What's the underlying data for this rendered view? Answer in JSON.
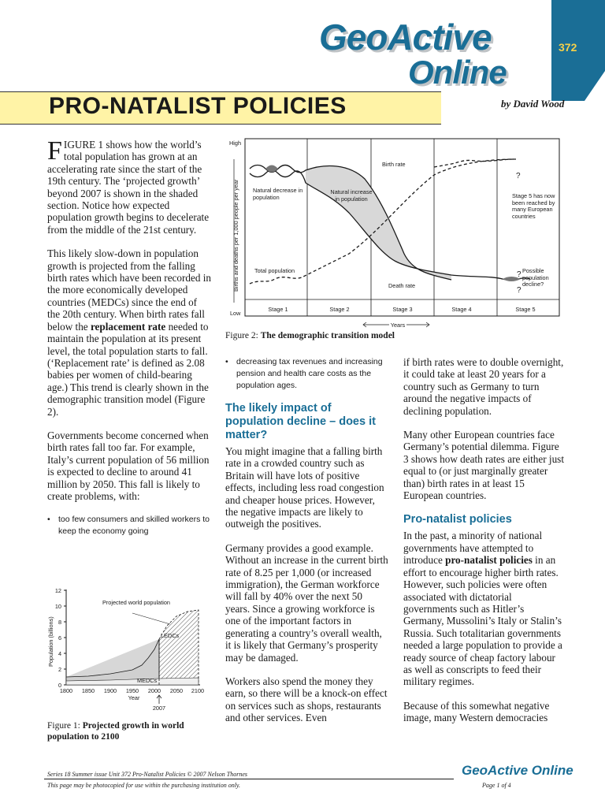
{
  "masthead": {
    "logo_line1": "GeoActive",
    "logo_line2": "Online",
    "issue_number": "372",
    "colors": {
      "brand_blue": "#1a6e96",
      "title_band": "#fff3a6",
      "issue_gold": "#f4d04a"
    }
  },
  "article": {
    "title": "PRO-NATALIST POLICIES",
    "byline": "by David Wood",
    "col1": {
      "dropcap": "F",
      "p1_rest": "IGURE 1 shows how the world’s total population has grown at an accelerating rate since the start of the 19th century. The ‘projected growth’ beyond 2007 is shown in the shaded section. Notice how expected population growth begins to decelerate from the middle of the 21st century.",
      "p2_before": "This likely slow-down in population growth is projected from the falling birth rates which have been recorded in the more economically developed countries (MEDCs) since the end of the 20th century. When birth rates fall below the",
      "p2_bold": "replacement rate",
      "p2_after": "needed to maintain the population at its present level, the total population starts to fall. (‘Replacement rate’ is defined as 2.08 babies per women of child-bearing age.) This trend is clearly shown in the demographic transition model (Figure 2).",
      "p3": "Governments become concerned when birth rates fall too far. For example, Italy’s current population of 56 million is expected to decline to around 41 million by 2050. This fall is likely to create problems, with:",
      "bullet1": "too few consumers and skilled workers to keep the economy going"
    },
    "col2": {
      "bullet2": "decreasing tax revenues and increasing pension and health care costs as the population ages.",
      "subhead1": "The likely impact of population decline – does it matter?",
      "p1": "You might imagine that a falling birth rate in a crowded country such as Britain will have lots of positive effects, including less road congestion and cheaper house prices. However, the negative impacts are likely to outweigh the positives.",
      "p2": "Germany provides a good example. Without an increase in the current birth rate of 8.25 per 1,000 (or increased immigration), the German workforce will fall by 40% over the next 50 years. Since a growing workforce is one of the important factors in generating a country’s overall wealth, it is likely that Germany’s prosperity may be damaged.",
      "p3": "Workers also spend the money they earn, so there will be a knock-on effect on services such as shops, restaurants and other services. Even"
    },
    "col3": {
      "p1": "if birth rates were to double overnight, it could take at least 20 years for a country such as Germany to turn around the negative impacts of declining population.",
      "p2": "Many other European countries face Germany’s potential dilemma. Figure 3 shows how death rates are either just equal to (or just marginally greater than) birth rates in at least 15 European countries.",
      "subhead2": "Pro-natalist policies",
      "p3_before": "In the past, a minority of national governments have attempted to introduce",
      "p3_bold": "pro-natalist policies",
      "p3_after": "in an effort to encourage higher birth rates. However, such policies were often associated with dictatorial governments such as Hitler’s Germany, Mussolini’s Italy or Stalin’s Russia. Such totalitarian governments needed a large population to provide a ready source of cheap factory labour as well as conscripts to feed their military regimes.",
      "p4": "Because of this somewhat negative image, many Western democracies"
    }
  },
  "figure1": {
    "caption_prefix": "Figure 1:",
    "caption_bold": "Projected growth in world population to 2100",
    "y_axis_label": "Population (billions)",
    "x_axis_label": "Year",
    "marker_label": "2007",
    "annotation_projected": "Projected world population",
    "label_ledcs": "LEDCs",
    "label_medcs": "MEDCs",
    "y_ticks": [
      "0",
      "2",
      "4",
      "6",
      "8",
      "10",
      "12"
    ],
    "x_ticks": [
      "1800",
      "1850",
      "1900",
      "1950",
      "2000",
      "2050",
      "2100"
    ]
  },
  "figure2": {
    "caption_prefix": "Figure 2:",
    "caption_bold": "The demographic transition model",
    "y_axis_label": "Births and deaths per 1,000 people per year",
    "y_high": "High",
    "y_low": "Low",
    "x_axis_label": "Years",
    "stages": [
      "Stage 1",
      "Stage 2",
      "Stage 3",
      "Stage 4",
      "Stage 5"
    ],
    "label_birth_rate": "Birth rate",
    "label_death_rate": "Death rate",
    "label_total_population": "Total population",
    "label_natural_decrease": "Natural decrease in population",
    "label_natural_increase": "Natural increase in population",
    "label_stage5_note": "Stage 5 has now been reached by many European countries",
    "label_possible_decline": "Possible population decline?",
    "q1": "?",
    "q2": "?",
    "q3": "?"
  },
  "footer": {
    "line1": "Series 18 Summer issue Unit 372 Pro-Natalist Policies © 2007 Nelson Thornes",
    "line2": "This page may be photocopied for use within the purchasing institution only.",
    "logo": "GeoActive Online",
    "page": "Page 1 of 4"
  }
}
